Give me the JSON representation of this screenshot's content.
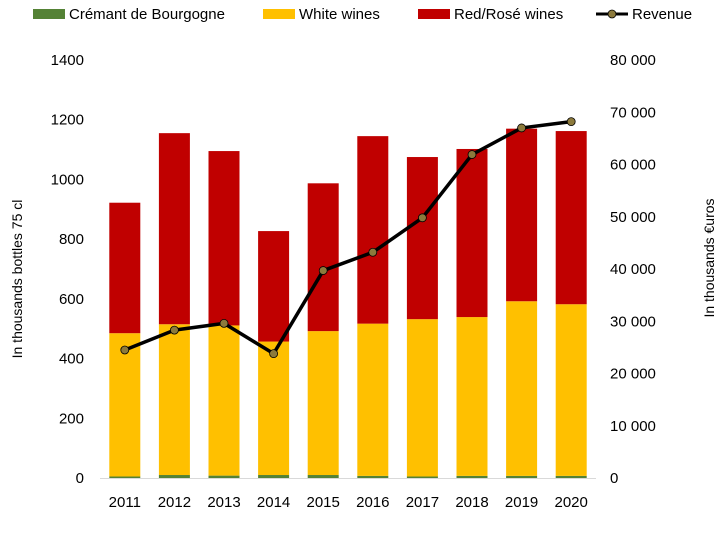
{
  "chart_data": {
    "type": "bar",
    "stacked": true,
    "categories": [
      "2011",
      "2012",
      "2013",
      "2014",
      "2015",
      "2016",
      "2017",
      "2018",
      "2019",
      "2020"
    ],
    "series": [
      {
        "name": "Crémant de Bourgogne",
        "color": "#548235",
        "axis": "left",
        "values": [
          5,
          10,
          8,
          10,
          10,
          7,
          5,
          7,
          7,
          7
        ]
      },
      {
        "name": "White wines",
        "color": "#FFC000",
        "axis": "left",
        "values": [
          480,
          505,
          503,
          447,
          482,
          510,
          527,
          532,
          585,
          575
        ]
      },
      {
        "name": "Red/Rosé wines",
        "color": "#C00000",
        "axis": "left",
        "values": [
          437,
          640,
          584,
          370,
          495,
          628,
          543,
          563,
          578,
          580
        ]
      }
    ],
    "line_series": {
      "name": "Revenue",
      "color": "#000000",
      "marker_color": "#8C7A3C",
      "axis": "right",
      "values": [
        24500,
        28300,
        29600,
        23800,
        39700,
        43200,
        49800,
        61900,
        67000,
        68200
      ]
    },
    "y_left": {
      "min": 0,
      "max": 1400,
      "step": 200,
      "tick_labels": [
        "0",
        "200",
        "400",
        "600",
        "800",
        "1000",
        "1200",
        "1400"
      ],
      "label": "In thousands bottles  75 cl"
    },
    "y_right": {
      "min": 0,
      "max": 80000,
      "step": 10000,
      "tick_labels": [
        "0",
        "10 000",
        "20 000",
        "30 000",
        "40 000",
        "50 000",
        "60 000",
        "70 000",
        "80 000"
      ],
      "label": "In thousands €uros"
    },
    "grid": false,
    "legend_position": "top"
  }
}
